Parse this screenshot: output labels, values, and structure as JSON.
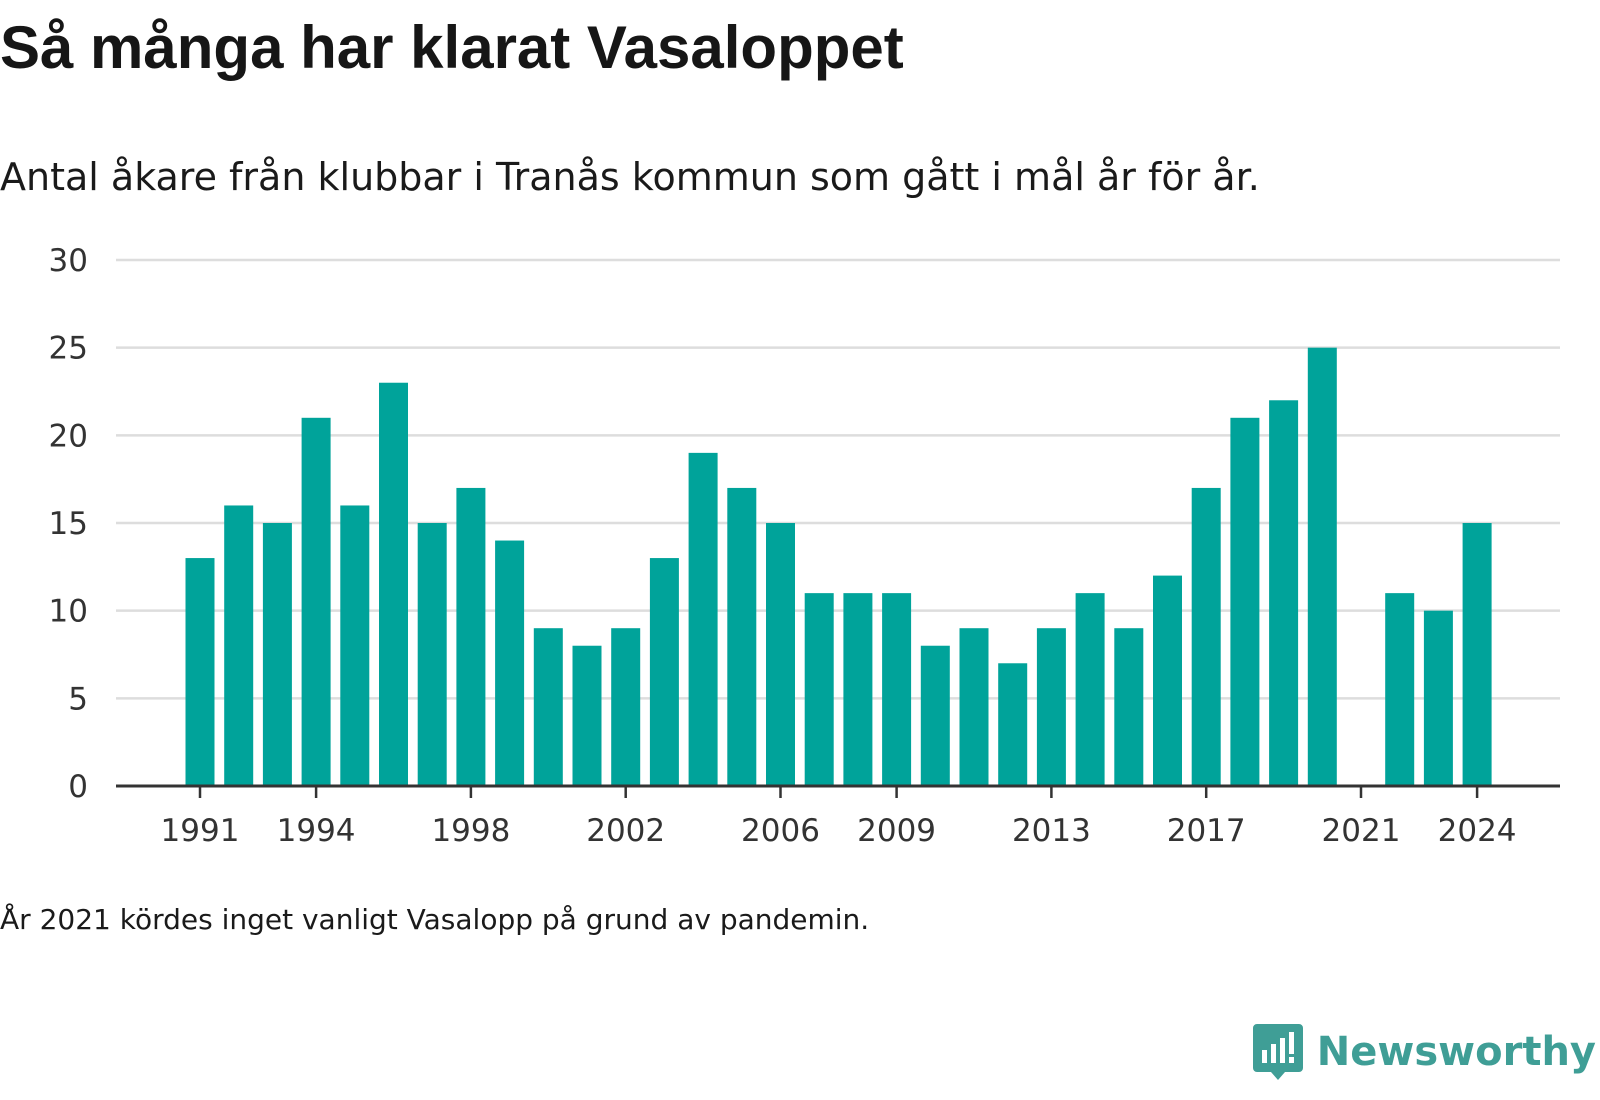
{
  "title": "Så många har klarat Vasaloppet",
  "subtitle": "Antal åkare från klubbar i Tranås kommun som gått i mål år för år.",
  "note": "År 2021 kördes inget vanligt Vasalopp på grund av pandemin.",
  "brand": {
    "name": "Newsworthy",
    "icon": "newsworthy-logo-icon",
    "color": "#3f9e96"
  },
  "colors": {
    "bar": "#00a39a",
    "grid": "#dddddd",
    "axis": "#333333",
    "text": "#333333"
  },
  "chart_data": {
    "type": "bar",
    "title": "Så många har klarat Vasaloppet",
    "subtitle": "Antal åkare från klubbar i Tranås kommun som gått i mål år för år.",
    "xlabel": "",
    "ylabel": "",
    "grid": true,
    "ylim": [
      0,
      30
    ],
    "yticks": [
      0,
      5,
      10,
      15,
      20,
      25,
      30
    ],
    "xticks": [
      "1991",
      "1994",
      "1998",
      "2002",
      "2006",
      "2009",
      "2013",
      "2017",
      "2021",
      "2024"
    ],
    "categories": [
      1991,
      1992,
      1993,
      1994,
      1995,
      1996,
      1997,
      1998,
      1999,
      2000,
      2001,
      2002,
      2003,
      2004,
      2005,
      2006,
      2007,
      2008,
      2009,
      2010,
      2011,
      2012,
      2013,
      2014,
      2015,
      2016,
      2017,
      2018,
      2019,
      2020,
      2021,
      2022,
      2023,
      2024
    ],
    "values": [
      13,
      16,
      15,
      21,
      16,
      23,
      15,
      17,
      14,
      9,
      8,
      9,
      13,
      19,
      17,
      15,
      11,
      11,
      11,
      8,
      9,
      7,
      9,
      11,
      9,
      12,
      17,
      21,
      22,
      25,
      null,
      11,
      10,
      15
    ]
  }
}
